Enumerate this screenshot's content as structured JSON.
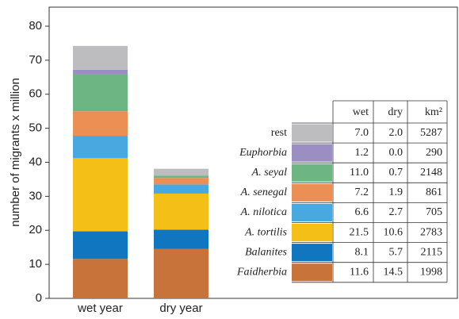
{
  "chart_data": {
    "type": "stacked_bar",
    "y_label": "number of migrants x million",
    "categories": [
      "wet year",
      "dry year"
    ],
    "ylim": [
      0,
      85.6
    ],
    "yticks": [
      0,
      10,
      20,
      30,
      40,
      50,
      60,
      70,
      80
    ],
    "table_columns": [
      "wet",
      "dry",
      "km²"
    ],
    "series": [
      {
        "name": "Faidherbia",
        "color": "#c8733a",
        "values": [
          11.6,
          14.5
        ],
        "value_labels": [
          "11.6",
          "14.5"
        ],
        "area": 1998
      },
      {
        "name": "Balanites",
        "color": "#0f76bf",
        "values": [
          8.1,
          5.7
        ],
        "value_labels": [
          "8.1",
          "5.7"
        ],
        "area": 2115
      },
      {
        "name": "A. tortilis",
        "color": "#f4c018",
        "values": [
          21.5,
          10.6
        ],
        "value_labels": [
          "21.5",
          "10.6"
        ],
        "area": 2783
      },
      {
        "name": "A. nilotica",
        "color": "#4aa8e0",
        "values": [
          6.6,
          2.7
        ],
        "value_labels": [
          "6.6",
          "2.7"
        ],
        "area": 705
      },
      {
        "name": "A. senegal",
        "color": "#ec8f55",
        "values": [
          7.2,
          1.9
        ],
        "value_labels": [
          "7.2",
          "1.9"
        ],
        "area": 861
      },
      {
        "name": "A. seyal",
        "color": "#6db583",
        "values": [
          11.0,
          0.7
        ],
        "value_labels": [
          "11.0",
          "0.7"
        ],
        "area": 2148
      },
      {
        "name": "Euphorbia",
        "color": "#9b8ec2",
        "values": [
          1.2,
          0.0
        ],
        "value_labels": [
          "1.2",
          "0.0"
        ],
        "area": 290
      },
      {
        "name": "rest",
        "color": "#bdbdc0",
        "values": [
          7.0,
          2.0
        ],
        "value_labels": [
          "7.0",
          "2.0"
        ],
        "area": 5287
      }
    ]
  }
}
